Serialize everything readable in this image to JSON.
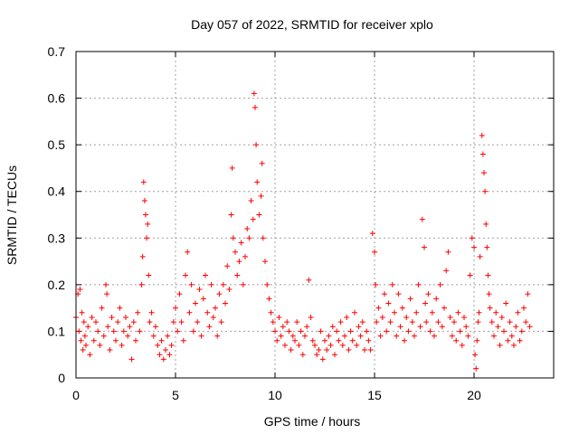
{
  "chart_data": {
    "type": "scatter",
    "marker": "plus",
    "title": "Day 057 of 2022, SRMTID for receiver xplo",
    "xlabel": "GPS time / hours",
    "ylabel": "SRMTID / TECUs",
    "xlim": [
      0,
      24
    ],
    "ylim": [
      0,
      0.7
    ],
    "xticks": [
      0,
      5,
      10,
      15,
      20
    ],
    "yticks": [
      0,
      0.1,
      0.2,
      0.3,
      0.4,
      0.5,
      0.6,
      0.7
    ],
    "xtick_labels": [
      "0",
      "5",
      "10",
      "15",
      "20"
    ],
    "ytick_labels": [
      "0",
      "0.1",
      "0.2",
      "0.3",
      "0.4",
      "0.5",
      "0.6",
      "0.7"
    ],
    "grid": true,
    "series": [
      {
        "name": "xplo",
        "color": "#ff0000",
        "x": [
          0.0,
          0.1,
          0.15,
          0.2,
          0.25,
          0.3,
          0.35,
          0.4,
          0.45,
          0.5,
          0.6,
          0.7,
          0.8,
          0.9,
          1.0,
          1.1,
          1.2,
          1.3,
          1.4,
          1.5,
          1.55,
          1.6,
          1.7,
          1.8,
          1.9,
          2.0,
          2.1,
          2.2,
          2.3,
          2.4,
          2.5,
          2.6,
          2.7,
          2.8,
          2.9,
          3.0,
          3.1,
          3.2,
          3.3,
          3.35,
          3.4,
          3.45,
          3.5,
          3.55,
          3.6,
          3.65,
          3.7,
          3.8,
          3.9,
          4.0,
          4.1,
          4.2,
          4.3,
          4.4,
          4.5,
          4.6,
          4.7,
          4.8,
          4.9,
          5.0,
          5.1,
          5.2,
          5.3,
          5.4,
          5.5,
          5.6,
          5.7,
          5.8,
          5.9,
          6.0,
          6.1,
          6.2,
          6.3,
          6.4,
          6.5,
          6.6,
          6.7,
          6.8,
          6.9,
          7.0,
          7.1,
          7.2,
          7.3,
          7.4,
          7.5,
          7.6,
          7.7,
          7.8,
          7.85,
          7.9,
          8.0,
          8.1,
          8.2,
          8.3,
          8.4,
          8.5,
          8.6,
          8.7,
          8.8,
          8.9,
          8.95,
          9.0,
          9.05,
          9.1,
          9.2,
          9.3,
          9.35,
          9.4,
          9.5,
          9.6,
          9.7,
          9.8,
          9.9,
          10.0,
          10.1,
          10.2,
          10.3,
          10.4,
          10.5,
          10.6,
          10.7,
          10.8,
          10.9,
          11.0,
          11.1,
          11.2,
          11.3,
          11.4,
          11.5,
          11.6,
          11.7,
          11.8,
          11.9,
          12.0,
          12.1,
          12.2,
          12.3,
          12.4,
          12.5,
          12.6,
          12.7,
          12.8,
          12.9,
          13.0,
          13.1,
          13.2,
          13.3,
          13.4,
          13.5,
          13.6,
          13.7,
          13.8,
          13.9,
          14.0,
          14.1,
          14.2,
          14.3,
          14.4,
          14.5,
          14.6,
          14.7,
          14.8,
          14.9,
          15.0,
          15.05,
          15.1,
          15.2,
          15.3,
          15.4,
          15.5,
          15.6,
          15.7,
          15.8,
          15.9,
          16.0,
          16.1,
          16.2,
          16.3,
          16.4,
          16.5,
          16.6,
          16.7,
          16.8,
          16.9,
          17.0,
          17.1,
          17.2,
          17.3,
          17.4,
          17.5,
          17.55,
          17.6,
          17.7,
          17.8,
          17.9,
          18.0,
          18.1,
          18.2,
          18.3,
          18.4,
          18.5,
          18.6,
          18.7,
          18.8,
          18.9,
          19.0,
          19.1,
          19.2,
          19.3,
          19.4,
          19.5,
          19.6,
          19.7,
          19.8,
          19.9,
          20.0,
          20.05,
          20.1,
          20.15,
          20.2,
          20.25,
          20.3,
          20.4,
          20.45,
          20.5,
          20.55,
          20.6,
          20.65,
          20.7,
          20.75,
          20.8,
          20.9,
          21.0,
          21.1,
          21.2,
          21.3,
          21.4,
          21.5,
          21.6,
          21.7,
          21.8,
          21.9,
          22.0,
          22.1,
          22.2,
          22.3,
          22.4,
          22.5,
          22.6,
          22.7,
          22.8
        ],
        "y": [
          0.13,
          0.18,
          0.1,
          0.19,
          0.08,
          0.14,
          0.06,
          0.12,
          0.09,
          0.07,
          0.11,
          0.05,
          0.13,
          0.08,
          0.12,
          0.1,
          0.07,
          0.15,
          0.09,
          0.2,
          0.18,
          0.11,
          0.06,
          0.13,
          0.1,
          0.08,
          0.12,
          0.15,
          0.07,
          0.1,
          0.13,
          0.09,
          0.11,
          0.04,
          0.12,
          0.08,
          0.14,
          0.1,
          0.2,
          0.26,
          0.42,
          0.38,
          0.35,
          0.3,
          0.33,
          0.22,
          0.12,
          0.14,
          0.09,
          0.11,
          0.07,
          0.05,
          0.08,
          0.04,
          0.06,
          0.09,
          0.05,
          0.07,
          0.12,
          0.15,
          0.1,
          0.18,
          0.12,
          0.08,
          0.22,
          0.27,
          0.14,
          0.2,
          0.1,
          0.16,
          0.12,
          0.19,
          0.09,
          0.17,
          0.22,
          0.14,
          0.11,
          0.2,
          0.13,
          0.15,
          0.09,
          0.18,
          0.12,
          0.2,
          0.16,
          0.24,
          0.19,
          0.35,
          0.45,
          0.3,
          0.27,
          0.22,
          0.25,
          0.29,
          0.2,
          0.26,
          0.32,
          0.3,
          0.38,
          0.34,
          0.61,
          0.58,
          0.5,
          0.42,
          0.35,
          0.39,
          0.46,
          0.3,
          0.25,
          0.2,
          0.17,
          0.14,
          0.12,
          0.1,
          0.08,
          0.13,
          0.09,
          0.11,
          0.07,
          0.12,
          0.1,
          0.06,
          0.09,
          0.08,
          0.12,
          0.07,
          0.1,
          0.05,
          0.09,
          0.11,
          0.21,
          0.13,
          0.08,
          0.07,
          0.05,
          0.06,
          0.1,
          0.04,
          0.08,
          0.06,
          0.09,
          0.07,
          0.11,
          0.05,
          0.1,
          0.08,
          0.12,
          0.07,
          0.09,
          0.13,
          0.06,
          0.1,
          0.08,
          0.14,
          0.07,
          0.11,
          0.09,
          0.12,
          0.06,
          0.1,
          0.08,
          0.06,
          0.31,
          0.27,
          0.2,
          0.12,
          0.15,
          0.09,
          0.13,
          0.18,
          0.1,
          0.16,
          0.12,
          0.2,
          0.14,
          0.09,
          0.18,
          0.11,
          0.15,
          0.08,
          0.13,
          0.1,
          0.17,
          0.12,
          0.09,
          0.14,
          0.2,
          0.11,
          0.34,
          0.28,
          0.16,
          0.12,
          0.18,
          0.1,
          0.14,
          0.09,
          0.17,
          0.12,
          0.2,
          0.11,
          0.15,
          0.23,
          0.27,
          0.13,
          0.09,
          0.12,
          0.08,
          0.14,
          0.1,
          0.07,
          0.13,
          0.11,
          0.09,
          0.22,
          0.3,
          0.28,
          0.05,
          0.02,
          0.08,
          0.12,
          0.14,
          0.26,
          0.52,
          0.48,
          0.44,
          0.4,
          0.33,
          0.28,
          0.22,
          0.18,
          0.15,
          0.12,
          0.09,
          0.14,
          0.11,
          0.07,
          0.13,
          0.1,
          0.16,
          0.08,
          0.12,
          0.09,
          0.07,
          0.11,
          0.14,
          0.08,
          0.1,
          0.15,
          0.12,
          0.18,
          0.11
        ]
      }
    ]
  }
}
